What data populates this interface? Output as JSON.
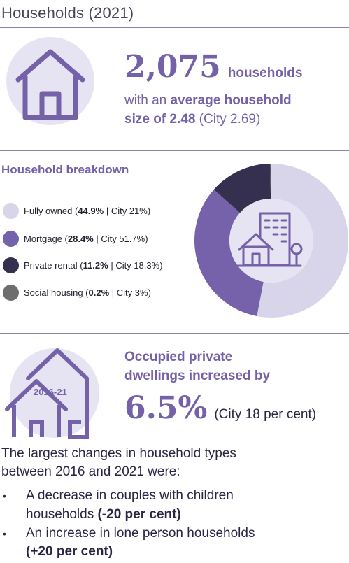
{
  "section_title": "Households (2021)",
  "households": {
    "number": "2,075",
    "unit": "households",
    "line2_prefix": "with an ",
    "line2_bold": "average household",
    "line3_bold": "size of 2.48",
    "line3_rest": " (City 2.69)"
  },
  "breakdown": {
    "title": "Household breakdown",
    "items": [
      {
        "name": "Fully owned",
        "pct": "44.9%",
        "city": "City 21%"
      },
      {
        "name": "Mortgage",
        "pct": "28.4%",
        "city": "City 51.7%"
      },
      {
        "name": "Private rental",
        "pct": "11.2%",
        "city": "City 18.3%"
      },
      {
        "name": "Social housing",
        "pct": "0.2%",
        "city": "City 3%"
      }
    ]
  },
  "chart_data": {
    "type": "pie",
    "donut": true,
    "categories": [
      "Fully owned",
      "Mortgage",
      "Private rental",
      "Social housing"
    ],
    "values": [
      44.9,
      28.4,
      11.2,
      0.2
    ],
    "colors": [
      "#d8d4ea",
      "#7562ab",
      "#35304f",
      "#6e6e6e"
    ],
    "legend_position": "left"
  },
  "dwellings": {
    "badge": "2016-21",
    "line1": "Occupied private",
    "line2": "dwellings increased by",
    "value": "6.5%",
    "city": "(City 18 per cent)"
  },
  "changes": {
    "intro_line1": "The largest changes in household types",
    "intro_line2": "between 2016 and 2021 were:",
    "bullets": [
      {
        "line1": "A decrease in couples with children",
        "line2_text": "households ",
        "line2_bold": "(-20 per cent)"
      },
      {
        "line1": "An increase in lone person households",
        "line2_text": "",
        "line2_bold": "(+20 per cent)"
      }
    ]
  }
}
